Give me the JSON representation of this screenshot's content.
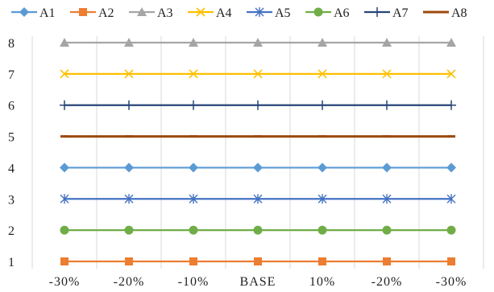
{
  "chart_data": {
    "type": "line",
    "title": "",
    "xlabel": "",
    "ylabel": "",
    "categories": [
      "-30%",
      "-20%",
      "-10%",
      "BASE",
      "10%",
      "-20%",
      "-30%"
    ],
    "ylim": [
      1,
      8
    ],
    "yticks": [
      1,
      2,
      3,
      4,
      5,
      6,
      7,
      8
    ],
    "grid": "vertical",
    "legend_position": "top",
    "series": [
      {
        "name": "A1",
        "values": [
          4,
          4,
          4,
          4,
          4,
          4,
          4
        ],
        "color": "#5B9BD5",
        "marker": "diamond"
      },
      {
        "name": "A2",
        "values": [
          1,
          1,
          1,
          1,
          1,
          1,
          1
        ],
        "color": "#ED7D31",
        "marker": "square"
      },
      {
        "name": "A3",
        "values": [
          8,
          8,
          8,
          8,
          8,
          8,
          8
        ],
        "color": "#A5A5A5",
        "marker": "triangle"
      },
      {
        "name": "A4",
        "values": [
          7,
          7,
          7,
          7,
          7,
          7,
          7
        ],
        "color": "#FFC000",
        "marker": "x"
      },
      {
        "name": "A5",
        "values": [
          3,
          3,
          3,
          3,
          3,
          3,
          3
        ],
        "color": "#4472C4",
        "marker": "star"
      },
      {
        "name": "A6",
        "values": [
          2,
          2,
          2,
          2,
          2,
          2,
          2
        ],
        "color": "#70AD47",
        "marker": "circle"
      },
      {
        "name": "A7",
        "values": [
          6,
          6,
          6,
          6,
          6,
          6,
          6
        ],
        "color": "#264478",
        "marker": "plus"
      },
      {
        "name": "A8",
        "values": [
          5,
          5,
          5,
          5,
          5,
          5,
          5
        ],
        "color": "#9E480E",
        "marker": "dash"
      }
    ]
  }
}
